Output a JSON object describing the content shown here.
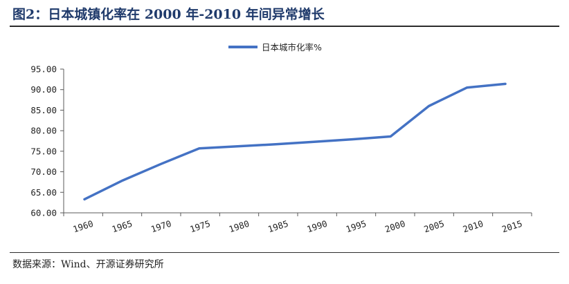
{
  "header": {
    "title": "图2：日本城镇化率在 2000 年-2010 年间异常增长"
  },
  "footer": {
    "source": "数据来源：Wind、开源证券研究所"
  },
  "chart_data": {
    "type": "line",
    "title": "",
    "xlabel": "",
    "ylabel": "",
    "legend": {
      "position": "top-center"
    },
    "grid": false,
    "ylim": [
      60,
      95
    ],
    "xlim": [
      1960,
      2015
    ],
    "y_ticks": [
      "60.00",
      "65.00",
      "70.00",
      "75.00",
      "80.00",
      "85.00",
      "90.00",
      "95.00"
    ],
    "x_ticks": [
      "1960",
      "1965",
      "1970",
      "1975",
      "1980",
      "1985",
      "1990",
      "1995",
      "2000",
      "2005",
      "2010",
      "2015"
    ],
    "series": [
      {
        "name": "日本城市化率%",
        "color": "#4472c4",
        "x": [
          1960,
          1965,
          1970,
          1975,
          1980,
          1985,
          1990,
          1995,
          2000,
          2005,
          2010,
          2015
        ],
        "values": [
          63.3,
          67.9,
          71.9,
          75.7,
          76.2,
          76.7,
          77.3,
          77.9,
          78.6,
          86.0,
          90.5,
          91.4
        ]
      }
    ]
  }
}
